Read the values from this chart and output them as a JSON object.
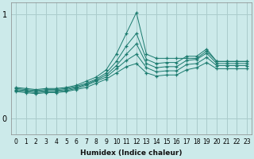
{
  "xlabel": "Humidex (Indice chaleur)",
  "x_values": [
    0,
    1,
    2,
    3,
    4,
    5,
    6,
    7,
    8,
    9,
    10,
    11,
    12,
    13,
    14,
    15,
    16,
    17,
    18,
    19,
    20,
    21,
    22,
    23
  ],
  "line1": [
    0.3,
    0.29,
    0.28,
    0.29,
    0.29,
    0.3,
    0.32,
    0.36,
    0.4,
    0.47,
    0.62,
    0.82,
    1.02,
    0.62,
    0.58,
    0.58,
    0.58,
    0.58,
    0.58,
    0.65,
    0.55,
    0.55,
    0.55,
    0.55
  ],
  "line2": [
    0.29,
    0.28,
    0.27,
    0.28,
    0.28,
    0.29,
    0.31,
    0.34,
    0.38,
    0.44,
    0.55,
    0.7,
    0.82,
    0.57,
    0.53,
    0.54,
    0.54,
    0.6,
    0.6,
    0.67,
    0.55,
    0.55,
    0.55,
    0.55
  ],
  "line3": [
    0.28,
    0.27,
    0.26,
    0.27,
    0.27,
    0.28,
    0.3,
    0.33,
    0.37,
    0.42,
    0.51,
    0.62,
    0.72,
    0.53,
    0.49,
    0.5,
    0.5,
    0.56,
    0.57,
    0.63,
    0.53,
    0.53,
    0.53,
    0.53
  ],
  "line4": [
    0.27,
    0.26,
    0.25,
    0.26,
    0.26,
    0.27,
    0.29,
    0.32,
    0.36,
    0.4,
    0.48,
    0.56,
    0.62,
    0.49,
    0.45,
    0.46,
    0.46,
    0.52,
    0.53,
    0.59,
    0.51,
    0.51,
    0.51,
    0.51
  ],
  "line5": [
    0.26,
    0.25,
    0.24,
    0.25,
    0.25,
    0.26,
    0.28,
    0.3,
    0.34,
    0.38,
    0.44,
    0.5,
    0.53,
    0.44,
    0.41,
    0.42,
    0.42,
    0.47,
    0.49,
    0.54,
    0.48,
    0.48,
    0.48,
    0.48
  ],
  "line_color": "#1a7a6e",
  "bg_color": "#cceaea",
  "grid_color": "#aacccc",
  "yticks": [
    0,
    1
  ],
  "ylim": [
    -0.15,
    1.12
  ],
  "xlim": [
    -0.5,
    23.5
  ]
}
